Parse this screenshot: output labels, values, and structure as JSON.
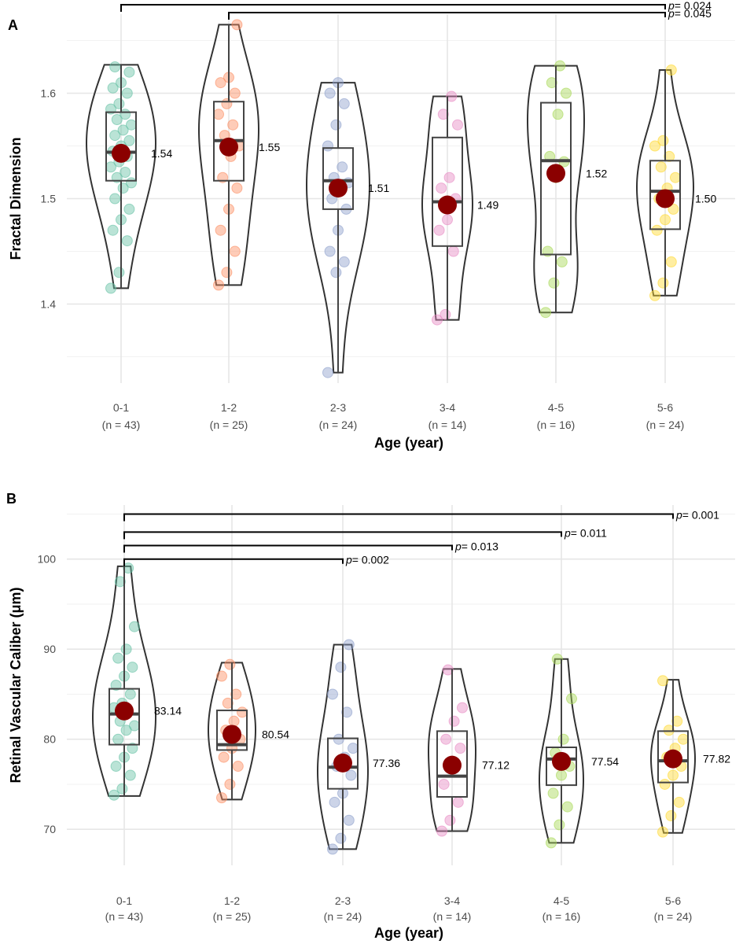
{
  "chart_data": [
    {
      "panel_label": "A",
      "type": "violin",
      "xlabel": "Age (year)",
      "ylabel": "Fractal Dimension",
      "ylim": [
        1.325,
        1.675
      ],
      "yticks": [
        1.4,
        1.5,
        1.6
      ],
      "ytick_labels": [
        "1.4",
        "1.5",
        "1.6"
      ],
      "categories": [
        "0-1",
        "1-2",
        "2-3",
        "3-4",
        "4-5",
        "5-6"
      ],
      "n_labels": [
        "(n = 43)",
        "(n = 25)",
        "(n = 24)",
        "(n = 14)",
        "(n = 16)",
        "(n = 24)"
      ],
      "colors": [
        "#66c2a5",
        "#fc8d62",
        "#8da0cb",
        "#e78ac3",
        "#a6d854",
        "#ffd92f"
      ],
      "mean_color": "#8b0000",
      "groups": [
        {
          "category": "0-1",
          "mean": 1.543,
          "mean_label": "1.54",
          "min": 1.415,
          "q1": 1.517,
          "median": 1.544,
          "q3": 1.582,
          "max": 1.627,
          "points": [
            1.415,
            1.43,
            1.46,
            1.47,
            1.48,
            1.49,
            1.5,
            1.51,
            1.515,
            1.52,
            1.525,
            1.53,
            1.535,
            1.54,
            1.545,
            1.55,
            1.555,
            1.56,
            1.565,
            1.57,
            1.575,
            1.58,
            1.585,
            1.59,
            1.6,
            1.605,
            1.61,
            1.62,
            1.625
          ]
        },
        {
          "category": "1-2",
          "mean": 1.549,
          "mean_label": "1.55",
          "min": 1.418,
          "q1": 1.517,
          "median": 1.555,
          "q3": 1.592,
          "max": 1.665,
          "points": [
            1.418,
            1.43,
            1.45,
            1.47,
            1.49,
            1.51,
            1.52,
            1.54,
            1.55,
            1.56,
            1.57,
            1.58,
            1.59,
            1.6,
            1.61,
            1.615,
            1.665
          ]
        },
        {
          "category": "2-3",
          "mean": 1.51,
          "mean_label": "1.51",
          "min": 1.335,
          "q1": 1.49,
          "median": 1.517,
          "q3": 1.548,
          "max": 1.61,
          "points": [
            1.335,
            1.43,
            1.44,
            1.45,
            1.47,
            1.49,
            1.5,
            1.51,
            1.515,
            1.52,
            1.53,
            1.55,
            1.57,
            1.59,
            1.6,
            1.61
          ]
        },
        {
          "category": "3-4",
          "mean": 1.494,
          "mean_label": "1.49",
          "min": 1.385,
          "q1": 1.455,
          "median": 1.497,
          "q3": 1.558,
          "max": 1.597,
          "points": [
            1.385,
            1.39,
            1.45,
            1.47,
            1.48,
            1.5,
            1.51,
            1.52,
            1.57,
            1.58,
            1.597
          ]
        },
        {
          "category": "4-5",
          "mean": 1.524,
          "mean_label": "1.52",
          "min": 1.392,
          "q1": 1.447,
          "median": 1.536,
          "q3": 1.591,
          "max": 1.626,
          "points": [
            1.392,
            1.42,
            1.44,
            1.45,
            1.52,
            1.535,
            1.54,
            1.58,
            1.6,
            1.61,
            1.626
          ]
        },
        {
          "category": "5-6",
          "mean": 1.5,
          "mean_label": "1.50",
          "min": 1.408,
          "q1": 1.471,
          "median": 1.507,
          "q3": 1.536,
          "max": 1.622,
          "points": [
            1.408,
            1.42,
            1.44,
            1.47,
            1.48,
            1.49,
            1.5,
            1.51,
            1.52,
            1.53,
            1.54,
            1.55,
            1.555,
            1.622
          ]
        }
      ],
      "brackets": [
        {
          "from": "0-1",
          "to": "5-6",
          "p_label": "p",
          "p_value": "= 0.024",
          "level": 1.675
        },
        {
          "from": "1-2",
          "to": "5-6",
          "p_label": "p",
          "p_value": "= 0.045",
          "level": 1.665
        }
      ]
    },
    {
      "panel_label": "B",
      "type": "violin",
      "xlabel": "Age (year)",
      "ylabel": "Retinal Vascular Caliber (μm)",
      "ylim": [
        66,
        106
      ],
      "yticks": [
        70,
        80,
        90,
        100
      ],
      "ytick_labels": [
        "70",
        "80",
        "90",
        "100"
      ],
      "categories": [
        "0-1",
        "1-2",
        "2-3",
        "3-4",
        "4-5",
        "5-6"
      ],
      "n_labels": [
        "(n = 43)",
        "(n = 25)",
        "(n = 24)",
        "(n = 14)",
        "(n = 16)",
        "(n = 24)"
      ],
      "colors": [
        "#66c2a5",
        "#fc8d62",
        "#8da0cb",
        "#e78ac3",
        "#a6d854",
        "#ffd92f"
      ],
      "mean_color": "#8b0000",
      "groups": [
        {
          "category": "0-1",
          "mean": 83.14,
          "mean_label": "83.14",
          "min": 73.7,
          "q1": 79.4,
          "median": 82.8,
          "q3": 85.6,
          "max": 99.2,
          "points": [
            73.8,
            74.5,
            76,
            77,
            78,
            79,
            80,
            81,
            81.5,
            82,
            83,
            83.5,
            84,
            85,
            86,
            87,
            88,
            89,
            90,
            92.5,
            97.5,
            99
          ]
        },
        {
          "category": "1-2",
          "mean": 80.54,
          "mean_label": "80.54",
          "min": 73.3,
          "q1": 78.8,
          "median": 79.4,
          "q3": 83.2,
          "max": 88.5,
          "points": [
            73.5,
            75,
            77,
            78,
            79,
            80,
            81,
            82,
            83,
            84,
            85,
            87,
            88.3
          ]
        },
        {
          "category": "2-3",
          "mean": 77.36,
          "mean_label": "77.36",
          "min": 67.8,
          "q1": 74.5,
          "median": 76.9,
          "q3": 80.1,
          "max": 90.5,
          "points": [
            67.8,
            69,
            71,
            73,
            74,
            76,
            77,
            78,
            79,
            80,
            83,
            85,
            88,
            90.5
          ]
        },
        {
          "category": "3-4",
          "mean": 77.12,
          "mean_label": "77.12",
          "min": 69.8,
          "q1": 73.6,
          "median": 75.9,
          "q3": 80.9,
          "max": 87.8,
          "points": [
            69.8,
            71,
            73,
            75,
            77,
            79,
            80,
            82,
            83.5,
            87.7
          ]
        },
        {
          "category": "4-5",
          "mean": 77.54,
          "mean_label": "77.54",
          "min": 68.5,
          "q1": 74.9,
          "median": 77.8,
          "q3": 79.1,
          "max": 88.9,
          "points": [
            68.5,
            70.5,
            72.5,
            74,
            76,
            77,
            78.5,
            80,
            84.5,
            88.9
          ]
        },
        {
          "category": "5-6",
          "mean": 77.82,
          "mean_label": "77.82",
          "min": 69.6,
          "q1": 75.2,
          "median": 77.6,
          "q3": 80.9,
          "max": 86.6,
          "points": [
            69.7,
            71.5,
            73,
            75,
            76,
            77,
            78,
            79,
            80,
            81,
            82,
            86.5
          ]
        }
      ],
      "brackets": [
        {
          "from": "0-1",
          "to": "5-6",
          "p_label": "p",
          "p_value": "= 0.001",
          "level": 105
        },
        {
          "from": "0-1",
          "to": "4-5",
          "p_label": "p",
          "p_value": "= 0.011",
          "level": 103
        },
        {
          "from": "0-1",
          "to": "3-4",
          "p_label": "p",
          "p_value": "= 0.013",
          "level": 101.5
        },
        {
          "from": "0-1",
          "to": "2-3",
          "p_label": "p",
          "p_value": "= 0.002",
          "level": 100
        }
      ]
    }
  ]
}
